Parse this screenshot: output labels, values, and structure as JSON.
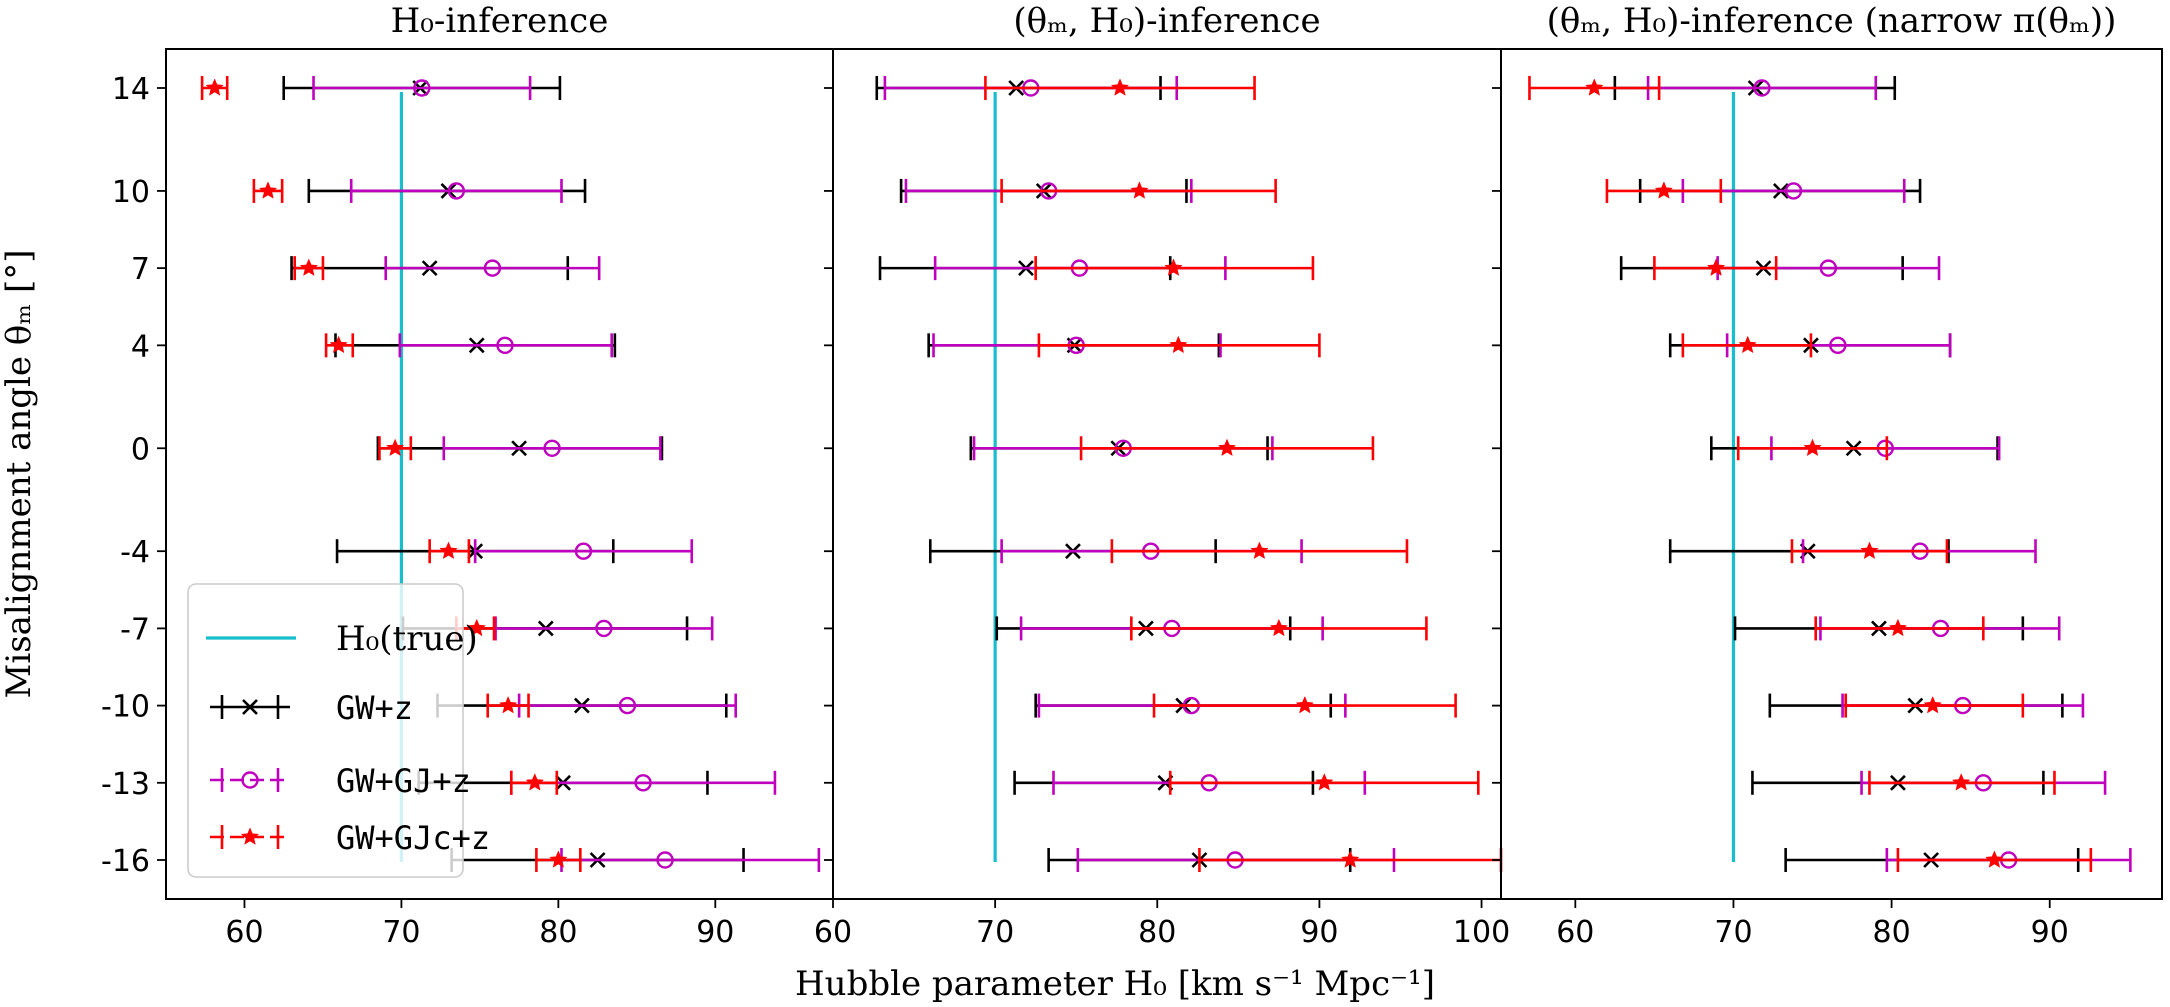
{
  "chart_data": {
    "type": "errorbar",
    "shared_xlabel": "Hubble parameter H₀ [km s⁻¹ Mpc⁻¹]",
    "shared_ylabel": "Misalignment angle θₘ [°]",
    "y_ticks": [
      14,
      10,
      7,
      4,
      0,
      -4,
      -7,
      -10,
      -13,
      -16
    ],
    "h0_true": 70,
    "legend": {
      "placement": "lower-left of first panel",
      "entries": [
        {
          "key": "h0true",
          "label": "H₀(true)",
          "color": "#17becf"
        },
        {
          "key": "gwz",
          "label": "GW+z",
          "color": "#000000",
          "marker": "x"
        },
        {
          "key": "gwgjz",
          "label": "GW+GJ+z",
          "color": "#bf00bf",
          "marker": "circle"
        },
        {
          "key": "gwgjcz",
          "label": "GW+GJc+z",
          "color": "#ff0000",
          "marker": "star"
        }
      ]
    },
    "panels": [
      {
        "title": "H₀-inference",
        "xlim": [
          55,
          97.5
        ],
        "x_ticks": [
          60,
          70,
          80,
          90
        ],
        "series": {
          "gwz": [
            [
              14,
              71.2,
              62.5,
              80.1
            ],
            [
              10,
              73,
              64.1,
              81.7
            ],
            [
              7,
              71.8,
              63,
              80.6
            ],
            [
              4,
              74.8,
              65.8,
              83.6
            ],
            [
              0,
              77.5,
              68.5,
              86.6
            ],
            [
              -4,
              74.7,
              65.9,
              83.5
            ],
            [
              -7,
              79.2,
              70.1,
              88.2
            ],
            [
              -10,
              81.5,
              72.3,
              90.7
            ],
            [
              -13,
              80.3,
              71.1,
              89.5
            ],
            [
              -16,
              82.5,
              73.2,
              91.8
            ]
          ],
          "gwgjz": [
            [
              14,
              71.3,
              64.4,
              78.2
            ],
            [
              10,
              73.5,
              66.8,
              80.2
            ],
            [
              7,
              75.8,
              69,
              82.6
            ],
            [
              4,
              76.6,
              69.9,
              83.4
            ],
            [
              0,
              79.6,
              72.7,
              86.5
            ],
            [
              -4,
              81.6,
              74.7,
              88.5
            ],
            [
              -7,
              82.9,
              76,
              89.8
            ],
            [
              -10,
              84.4,
              77.5,
              91.3
            ],
            [
              -13,
              85.4,
              77,
              93.8
            ],
            [
              -16,
              86.8,
              80.2,
              96.6
            ]
          ],
          "gwgjcz": [
            [
              14,
              58.1,
              57.3,
              58.9
            ],
            [
              10,
              61.5,
              60.6,
              62.4
            ],
            [
              7,
              64.1,
              63.2,
              65
            ],
            [
              4,
              66,
              65.2,
              66.9
            ],
            [
              0,
              69.6,
              68.6,
              70.6
            ],
            [
              -4,
              73,
              71.8,
              74.3
            ],
            [
              -7,
              74.8,
              73.5,
              75.9
            ],
            [
              -10,
              76.8,
              75.5,
              78.1
            ],
            [
              -13,
              78.5,
              77,
              79.9
            ],
            [
              -16,
              80,
              78.6,
              81.4
            ]
          ]
        }
      },
      {
        "title": "(θₘ, H₀)-inference",
        "xlim": [
          60,
          101.2
        ],
        "x_ticks": [
          60,
          70,
          80,
          90,
          100
        ],
        "series": {
          "gwz": [
            [
              14,
              71.3,
              62.7,
              80.2
            ],
            [
              10,
              73,
              64.2,
              81.8
            ],
            [
              7,
              71.9,
              62.9,
              80.8
            ],
            [
              4,
              74.9,
              65.9,
              83.8
            ],
            [
              0,
              77.6,
              68.5,
              86.8
            ],
            [
              -4,
              74.8,
              66,
              83.6
            ],
            [
              -7,
              79.3,
              70.1,
              88.2
            ],
            [
              -10,
              81.6,
              72.5,
              90.7
            ],
            [
              -13,
              80.5,
              71.2,
              89.6
            ],
            [
              -16,
              82.6,
              73.3,
              91.9
            ]
          ],
          "gwgjz": [
            [
              14,
              72.2,
              63.2,
              81.2
            ],
            [
              10,
              73.3,
              64.5,
              82.1
            ],
            [
              7,
              75.2,
              66.3,
              84.2
            ],
            [
              4,
              75,
              66.2,
              83.9
            ],
            [
              0,
              77.9,
              68.7,
              87.1
            ],
            [
              -4,
              79.6,
              70.4,
              88.9
            ],
            [
              -7,
              80.9,
              71.6,
              90.2
            ],
            [
              -10,
              82.1,
              72.7,
              91.6
            ],
            [
              -13,
              83.2,
              73.6,
              92.8
            ],
            [
              -16,
              84.8,
              75.1,
              94.6
            ]
          ],
          "gwgjcz": [
            [
              14,
              77.7,
              69.4,
              86
            ],
            [
              10,
              78.9,
              70.4,
              87.3
            ],
            [
              7,
              81,
              72.5,
              89.6
            ],
            [
              4,
              81.3,
              72.7,
              90
            ],
            [
              0,
              84.3,
              75.3,
              93.3
            ],
            [
              -4,
              86.3,
              77.2,
              95.4
            ],
            [
              -7,
              87.5,
              78.4,
              96.6
            ],
            [
              -10,
              89.1,
              79.8,
              98.4
            ],
            [
              -13,
              90.3,
              80.8,
              99.8
            ],
            [
              -16,
              91.9,
              82.6,
              101.2
            ]
          ]
        }
      },
      {
        "title": "(θₘ, H₀)-inference (narrow π(θₘ))",
        "xlim": [
          55.3,
          97.1
        ],
        "x_ticks": [
          60,
          70,
          80,
          90
        ],
        "series": {
          "gwz": [
            [
              14,
              71.4,
              62.5,
              80.2
            ],
            [
              10,
              73,
              64.1,
              81.8
            ],
            [
              7,
              71.9,
              62.9,
              80.7
            ],
            [
              4,
              74.9,
              66,
              83.7
            ],
            [
              0,
              77.6,
              68.6,
              86.7
            ],
            [
              -4,
              74.7,
              66,
              83.6
            ],
            [
              -7,
              79.2,
              70.1,
              88.3
            ],
            [
              -10,
              81.5,
              72.3,
              90.8
            ],
            [
              -13,
              80.4,
              71.2,
              89.6
            ],
            [
              -16,
              82.5,
              73.3,
              91.8
            ]
          ],
          "gwgjz": [
            [
              14,
              71.8,
              64.6,
              79
            ],
            [
              10,
              73.8,
              66.8,
              80.8
            ],
            [
              7,
              76,
              69,
              83
            ],
            [
              4,
              76.6,
              69.6,
              83.7
            ],
            [
              0,
              79.6,
              72.4,
              86.8
            ],
            [
              -4,
              81.8,
              74.4,
              89.1
            ],
            [
              -7,
              83.1,
              75.5,
              90.6
            ],
            [
              -10,
              84.5,
              76.9,
              92.1
            ],
            [
              -13,
              85.8,
              78.1,
              93.5
            ],
            [
              -16,
              87.4,
              79.7,
              95.1
            ]
          ],
          "gwgjcz": [
            [
              14,
              61.2,
              57.1,
              65.3
            ],
            [
              10,
              65.6,
              62,
              69.2
            ],
            [
              7,
              68.9,
              65,
              72.7
            ],
            [
              4,
              70.9,
              66.8,
              74.9
            ],
            [
              0,
              75,
              70.3,
              79.7
            ],
            [
              -4,
              78.6,
              73.7,
              83.5
            ],
            [
              -7,
              80.4,
              75.2,
              85.8
            ],
            [
              -10,
              82.6,
              77.1,
              88.3
            ],
            [
              -13,
              84.4,
              78.6,
              90.3
            ],
            [
              -16,
              86.5,
              80.4,
              92.6
            ]
          ]
        }
      }
    ]
  }
}
